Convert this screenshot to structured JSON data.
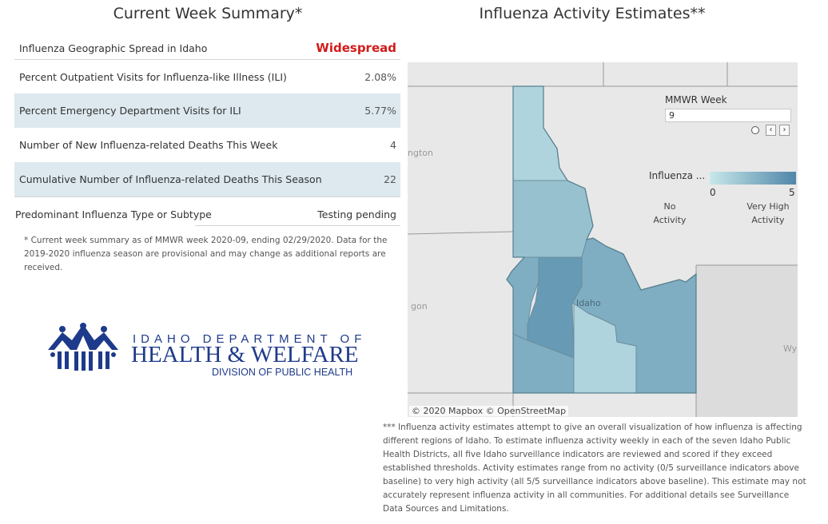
{
  "summary": {
    "title": "Current Week Summary*",
    "rows": [
      {
        "label": "Influenza Geographic Spread in Idaho",
        "value": "Widespread"
      },
      {
        "label": "Percent Outpatient Visits for Influenza-like Illness (ILI)",
        "value": "2.08%"
      },
      {
        "label": "Percent Emergency Department Visits for ILI",
        "value": "5.77%"
      },
      {
        "label": "Number of New Influenza-related Deaths This Week",
        "value": "4"
      },
      {
        "label": "Cumulative Number of Influenza-related Deaths This Season",
        "value": "22"
      },
      {
        "label": "Predominant Influenza Type or Subtype",
        "value": "Testing pending"
      }
    ],
    "footnote": "* Current week summary as of MMWR week 2020-09, ending 02/29/2020. Data for the 2019-2020 influenza season are provisional and may change as additional reports are received."
  },
  "logo": {
    "line1": "IDAHO DEPARTMENT OF",
    "line2": "HEALTH & WELFARE",
    "line3": "DIVISION OF PUBLIC HEALTH"
  },
  "map": {
    "title": "Influenza Activity Estimates**",
    "mmwr_label": "MMWR Week",
    "mmwr_value": "9",
    "legend_title": "Influenza ...",
    "legend_min": "0",
    "legend_max": "5",
    "legend_low_note": "No Activity",
    "legend_high_note": "Very High Activity",
    "place_labels": [
      "ngton",
      "gon",
      "Idaho",
      "Wy"
    ],
    "attribution": "© 2020 Mapbox  © OpenStreetMap",
    "district_activity_levels": [
      1,
      2,
      3,
      4,
      3,
      1,
      3
    ],
    "colors": {
      "alert": "#d41a1a",
      "scale_low": "#c8e8ea",
      "scale_high": "#4f86a8"
    }
  },
  "right_footnote": "*** Influenza activity estimates attempt to give an overall visualization of how influenza is affecting different regions of Idaho. To estimate influenza activity weekly in each of the seven Idaho Public Health Districts, all five Idaho surveillance indicators are reviewed and scored if they exceed established thresholds. Activity estimates range from no activity (0/5 surveillance indicators above baseline) to very high activity (all 5/5 surveillance indicators above baseline). This estimate may not accurately represent influenza activity in all communities. For additional details see Surveillance Data Sources and Limitations."
}
